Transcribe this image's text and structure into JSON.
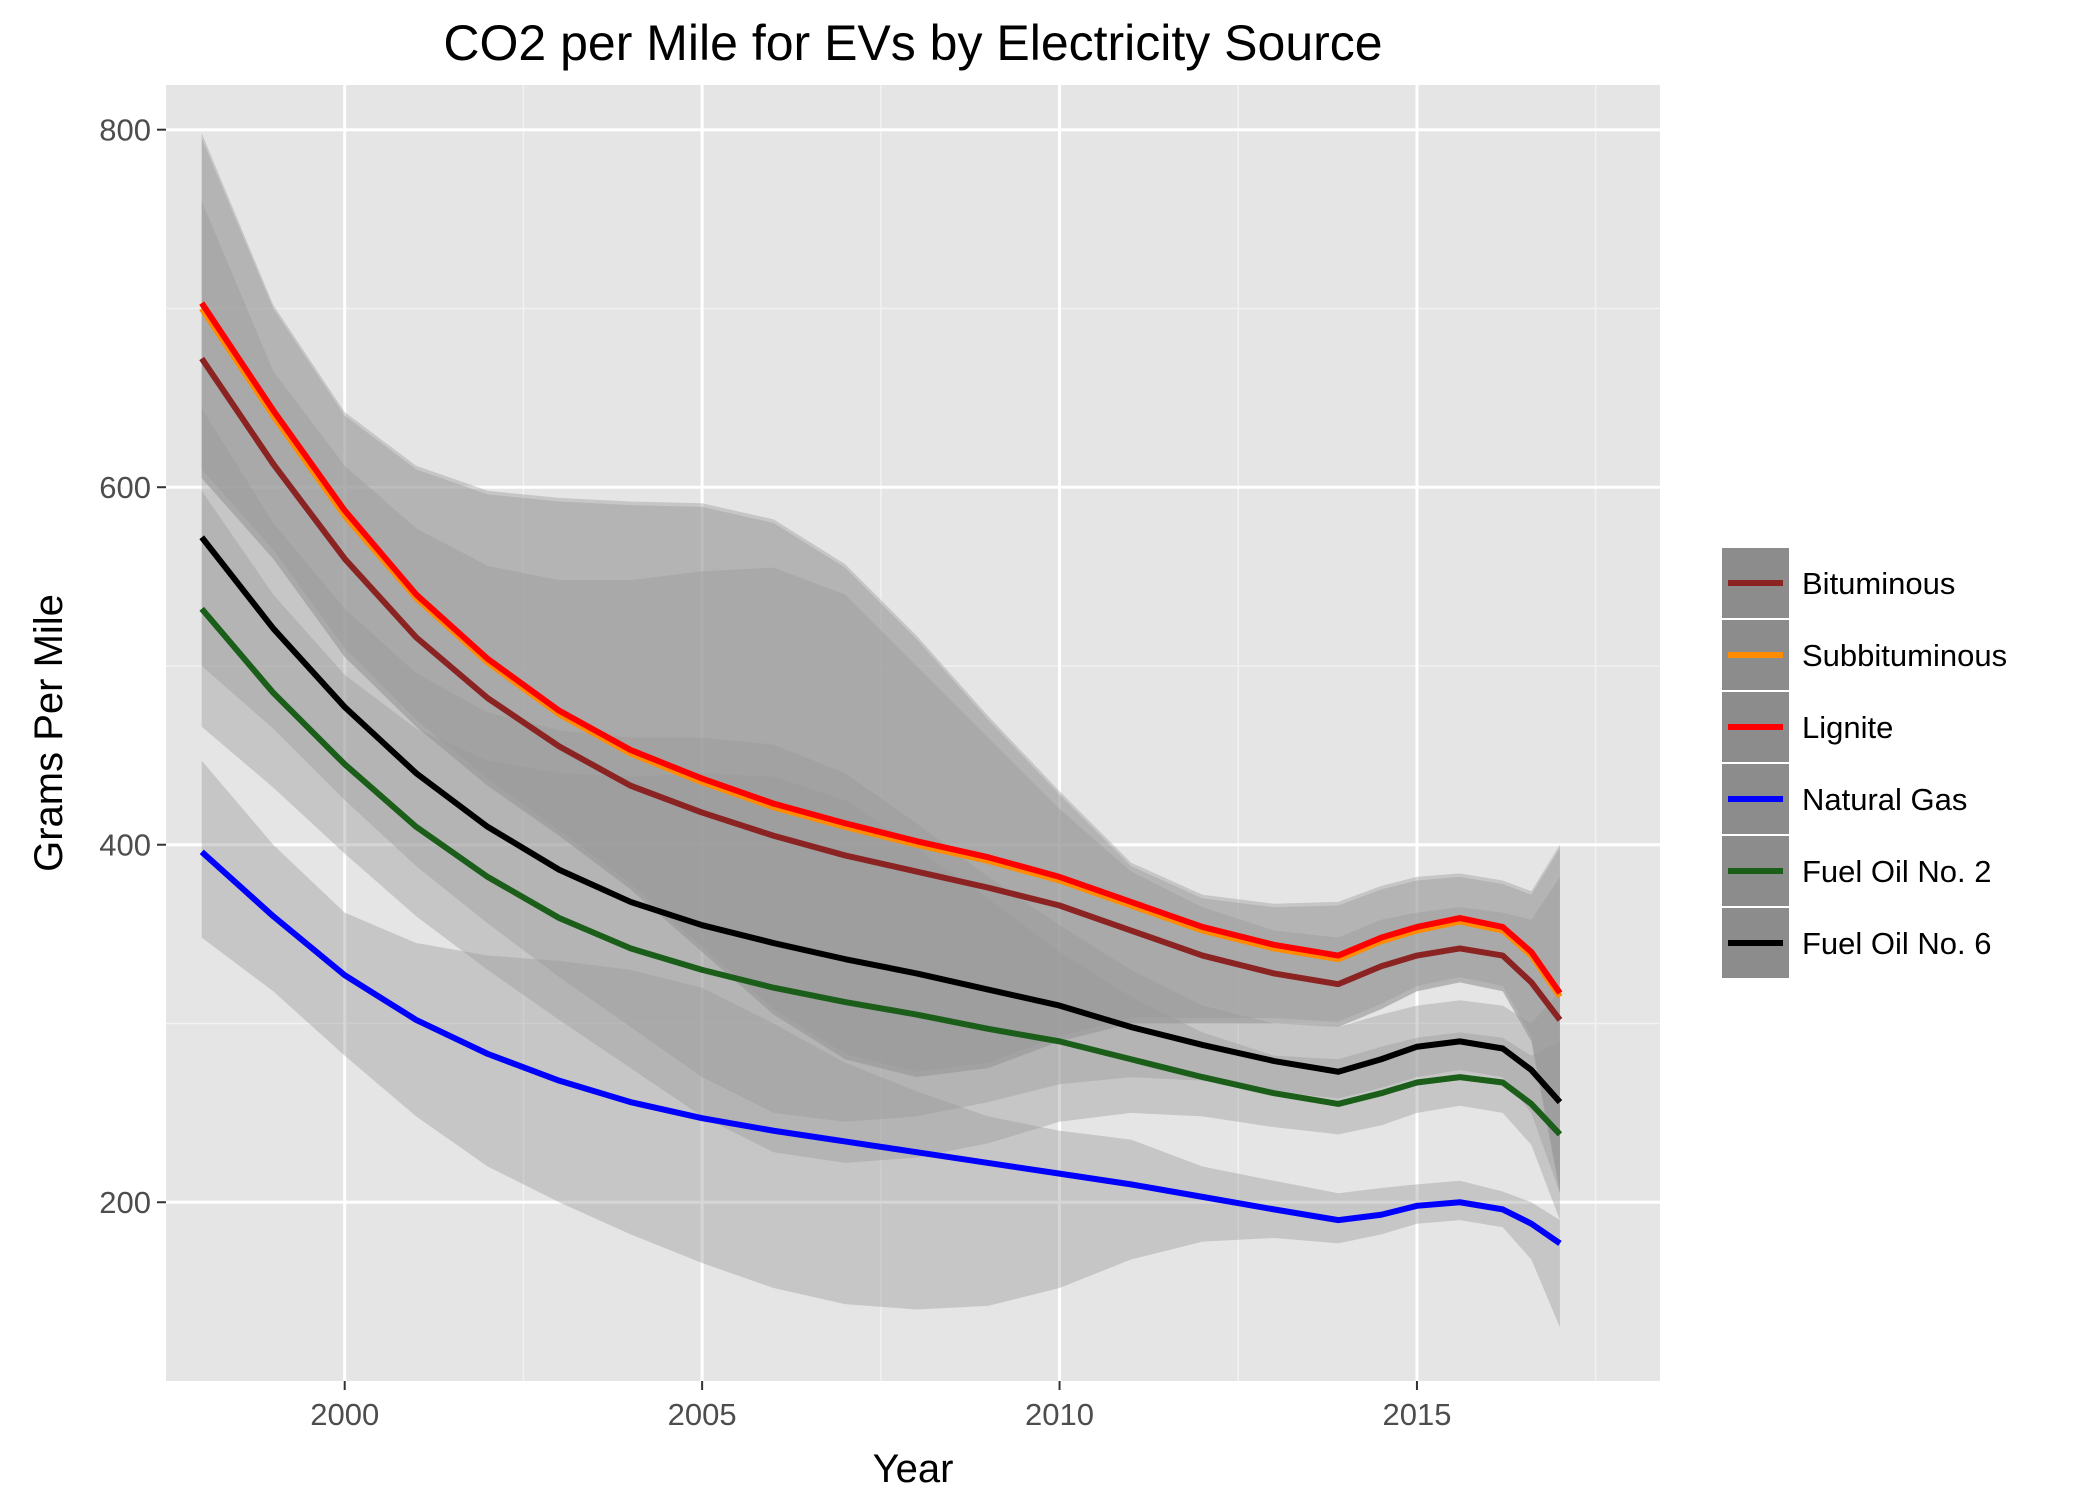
{
  "chart_data": {
    "type": "line",
    "title": "CO2 per Mile for EVs by Electricity Source",
    "xlabel": "Year",
    "ylabel": "Grams Per Mile",
    "xlim": [
      1997.5,
      2018.4
    ],
    "ylim": [
      100,
      825
    ],
    "xticks": [
      2000,
      2005,
      2010,
      2015
    ],
    "xtick_labels": [
      "2000",
      "2005",
      "2010",
      "2015"
    ],
    "yticks": [
      200,
      400,
      600,
      800
    ],
    "ytick_labels": [
      "200",
      "400",
      "600",
      "800"
    ],
    "grid": true,
    "legend_position": "right",
    "x": [
      1998,
      1999,
      2000,
      2001,
      2002,
      2003,
      2004,
      2005,
      2006,
      2007,
      2008,
      2009,
      2010,
      2011,
      2012,
      2013,
      2013.9,
      2014.5,
      2015,
      2015.6,
      2016.2,
      2016.6,
      2017
    ],
    "series": [
      {
        "name": "Bituminous",
        "color": "#8b2323",
        "values": [
          672,
          613,
          560,
          516,
          482,
          455,
          433,
          418,
          405,
          394,
          385,
          376,
          366,
          352,
          338,
          328,
          322,
          332,
          338,
          342,
          338,
          323,
          302
        ],
        "band_lower": [
          605,
          560,
          505,
          466,
          433,
          405,
          375,
          340,
          305,
          280,
          270,
          275,
          290,
          300,
          300,
          300,
          298,
          308,
          318,
          323,
          318,
          290,
          205
        ],
        "band_upper": [
          760,
          665,
          612,
          577,
          556,
          548,
          548,
          553,
          555,
          540,
          500,
          460,
          420,
          385,
          365,
          352,
          348,
          358,
          362,
          365,
          362,
          358,
          382
        ]
      },
      {
        "name": "Subbituminous",
        "color": "#ff8c00",
        "values": [
          700,
          640,
          584,
          538,
          502,
          473,
          451,
          435,
          421,
          410,
          400,
          391,
          380,
          366,
          352,
          342,
          336,
          346,
          352,
          357,
          352,
          338,
          315
        ],
        "band_lower": [
          605,
          560,
          505,
          466,
          433,
          405,
          375,
          340,
          305,
          280,
          270,
          275,
          290,
          300,
          300,
          300,
          298,
          308,
          318,
          323,
          318,
          290,
          205
        ],
        "band_upper": [
          795,
          700,
          640,
          610,
          596,
          592,
          590,
          589,
          580,
          555,
          515,
          470,
          428,
          388,
          370,
          365,
          366,
          375,
          380,
          382,
          378,
          372,
          398
        ]
      },
      {
        "name": "Lignite",
        "color": "#ff0000",
        "values": [
          703,
          643,
          587,
          540,
          504,
          475,
          453,
          437,
          423,
          412,
          402,
          393,
          382,
          368,
          354,
          344,
          338,
          348,
          354,
          359,
          354,
          340,
          317
        ],
        "band_lower": [
          610,
          565,
          510,
          470,
          437,
          408,
          378,
          343,
          308,
          283,
          273,
          278,
          293,
          303,
          303,
          303,
          301,
          311,
          321,
          326,
          321,
          293,
          208
        ],
        "band_upper": [
          798,
          702,
          642,
          612,
          598,
          594,
          592,
          591,
          582,
          557,
          517,
          472,
          430,
          390,
          372,
          367,
          368,
          377,
          382,
          384,
          380,
          374,
          400
        ]
      },
      {
        "name": "Natural Gas",
        "color": "#0000ff",
        "values": [
          396,
          360,
          327,
          302,
          283,
          268,
          256,
          247,
          240,
          234,
          228,
          222,
          216,
          210,
          203,
          196,
          190,
          193,
          198,
          200,
          196,
          188,
          177
        ],
        "band_lower": [
          348,
          318,
          282,
          248,
          220,
          200,
          182,
          166,
          152,
          143,
          140,
          142,
          152,
          168,
          178,
          180,
          177,
          182,
          188,
          190,
          186,
          168,
          130
        ],
        "band_upper": [
          447,
          400,
          362,
          345,
          338,
          335,
          330,
          320,
          300,
          278,
          262,
          248,
          240,
          235,
          220,
          212,
          205,
          208,
          210,
          212,
          206,
          200,
          190
        ]
      },
      {
        "name": "Fuel Oil No. 2",
        "color": "#1a5e1a",
        "values": [
          532,
          485,
          445,
          410,
          382,
          359,
          342,
          330,
          320,
          312,
          305,
          297,
          290,
          280,
          270,
          261,
          255,
          261,
          267,
          270,
          267,
          255,
          238
        ],
        "band_lower": [
          466,
          432,
          395,
          360,
          330,
          302,
          275,
          248,
          228,
          222,
          225,
          233,
          245,
          250,
          248,
          242,
          238,
          243,
          250,
          254,
          250,
          232,
          190
        ],
        "band_upper": [
          598,
          540,
          495,
          465,
          447,
          440,
          438,
          440,
          438,
          425,
          398,
          370,
          340,
          315,
          295,
          282,
          280,
          287,
          292,
          295,
          292,
          282,
          290
        ]
      },
      {
        "name": "Fuel Oil No. 6",
        "color": "#000000",
        "values": [
          572,
          521,
          477,
          440,
          410,
          386,
          368,
          355,
          345,
          336,
          328,
          319,
          310,
          298,
          288,
          279,
          273,
          280,
          287,
          290,
          286,
          274,
          256
        ],
        "band_lower": [
          500,
          465,
          425,
          388,
          356,
          326,
          298,
          270,
          250,
          245,
          248,
          256,
          266,
          270,
          268,
          262,
          258,
          264,
          270,
          274,
          270,
          250,
          205
        ],
        "band_upper": [
          644,
          580,
          532,
          496,
          474,
          464,
          460,
          460,
          456,
          440,
          412,
          382,
          355,
          330,
          310,
          300,
          298,
          305,
          310,
          313,
          310,
          300,
          318
        ]
      }
    ]
  }
}
